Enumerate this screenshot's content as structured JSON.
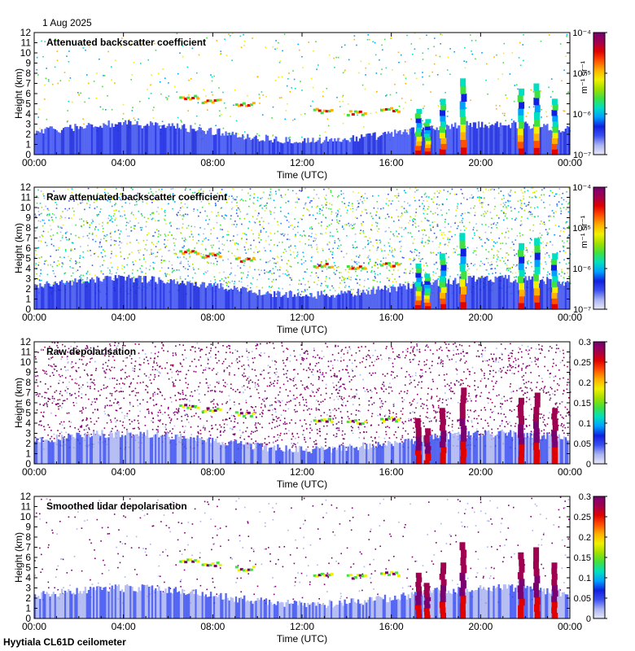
{
  "date": "1 Aug 2025",
  "footer": "Hyytiala CL61D ceilometer",
  "colors": {
    "cmap": [
      "#e8e8f8",
      "#aab4f0",
      "#3c50f0",
      "#1020e0",
      "#00a0ff",
      "#00e0c0",
      "#40e040",
      "#a0e000",
      "#f0f000",
      "#ffb000",
      "#ff5000",
      "#e00000",
      "#a00050",
      "#7a0070"
    ]
  },
  "chart_data": [
    {
      "type": "heatmap",
      "title": "Attenuated backscatter coefficient",
      "xlabel": "Time (UTC)",
      "ylabel": "Height (km)",
      "xticks": [
        "00:00",
        "04:00",
        "08:00",
        "12:00",
        "16:00",
        "20:00",
        "00:00"
      ],
      "yticks": [
        "0",
        "1",
        "2",
        "3",
        "4",
        "5",
        "6",
        "7",
        "8",
        "9",
        "10",
        "11",
        "12"
      ],
      "ylim": [
        0,
        12
      ],
      "colorbar": {
        "scale": "log",
        "label": "m⁻¹ sr⁻¹",
        "ticks": [
          "10⁻⁷",
          "10⁻⁶",
          "10⁻⁵",
          "10⁻⁴"
        ],
        "range": [
          1e-07,
          0.0001
        ]
      }
    },
    {
      "type": "heatmap",
      "title": "Raw attenuated backscatter coefficient",
      "xlabel": "Time (UTC)",
      "ylabel": "Height (km)",
      "xticks": [
        "00:00",
        "04:00",
        "08:00",
        "12:00",
        "16:00",
        "20:00",
        "00:00"
      ],
      "yticks": [
        "0",
        "1",
        "2",
        "3",
        "4",
        "5",
        "6",
        "7",
        "8",
        "9",
        "10",
        "11",
        "12"
      ],
      "ylim": [
        0,
        12
      ],
      "colorbar": {
        "scale": "log",
        "label": "m⁻¹ sr⁻¹",
        "ticks": [
          "10⁻⁷",
          "10⁻⁶",
          "10⁻⁵",
          "10⁻⁴"
        ],
        "range": [
          1e-07,
          0.0001
        ]
      }
    },
    {
      "type": "heatmap",
      "title": "Raw depolarisation",
      "xlabel": "Time (UTC)",
      "ylabel": "Height (km)",
      "xticks": [
        "00:00",
        "04:00",
        "08:00",
        "12:00",
        "16:00",
        "20:00",
        "00:00"
      ],
      "yticks": [
        "0",
        "1",
        "2",
        "3",
        "4",
        "5",
        "6",
        "7",
        "8",
        "9",
        "10",
        "11",
        "12"
      ],
      "ylim": [
        0,
        12
      ],
      "colorbar": {
        "scale": "linear",
        "label": "",
        "ticks": [
          "0",
          "0.05",
          "0.1",
          "0.15",
          "0.2",
          "0.25",
          "0.3"
        ],
        "range": [
          0,
          0.3
        ]
      }
    },
    {
      "type": "heatmap",
      "title": "Smoothed lidar depolarisation",
      "xlabel": "Time (UTC)",
      "ylabel": "Height (km)",
      "xticks": [
        "00:00",
        "04:00",
        "08:00",
        "12:00",
        "16:00",
        "20:00",
        "00:00"
      ],
      "yticks": [
        "0",
        "1",
        "2",
        "3",
        "4",
        "5",
        "6",
        "7",
        "8",
        "9",
        "10",
        "11",
        "12"
      ],
      "ylim": [
        0,
        12
      ],
      "colorbar": {
        "scale": "linear",
        "label": "",
        "ticks": [
          "0",
          "0.05",
          "0.1",
          "0.15",
          "0.2",
          "0.25",
          "0.3"
        ],
        "range": [
          0,
          0.3
        ]
      }
    }
  ]
}
